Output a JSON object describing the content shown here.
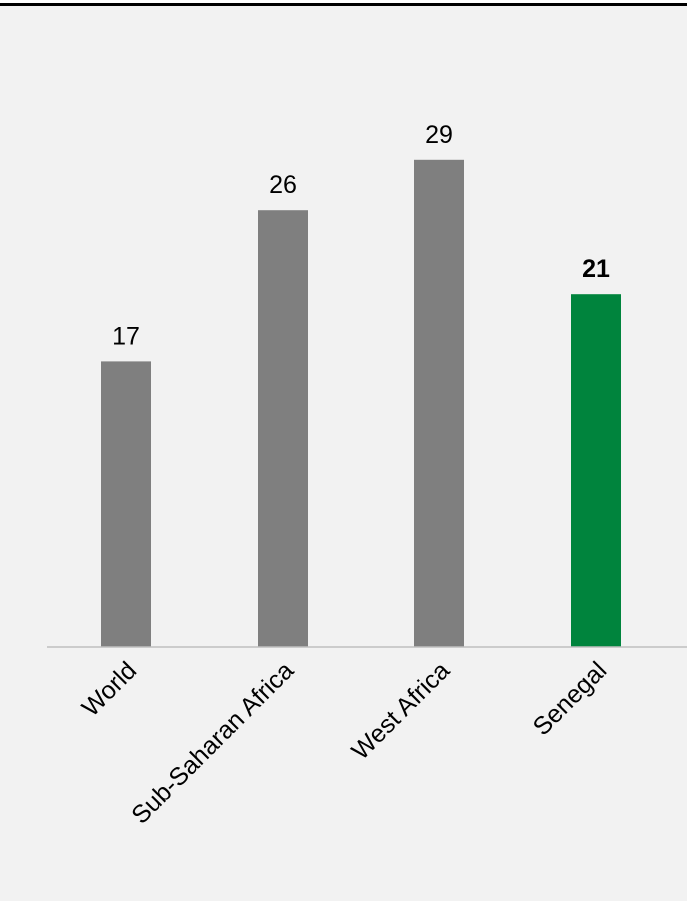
{
  "chart_data": {
    "type": "bar",
    "categories": [
      "World",
      "Sub-Saharan Africa",
      "West Africa",
      "Senegal"
    ],
    "values": [
      17,
      26,
      29,
      21
    ],
    "highlight_index": 3,
    "title": "",
    "xlabel": "",
    "ylabel": "",
    "ylim": [
      0,
      32
    ],
    "grid": false,
    "legend": "none"
  },
  "colors": {
    "bar": "#7f7f7f",
    "highlight": "#00843d",
    "axis": "#bfbfbf",
    "background": "#f2f2f2"
  }
}
